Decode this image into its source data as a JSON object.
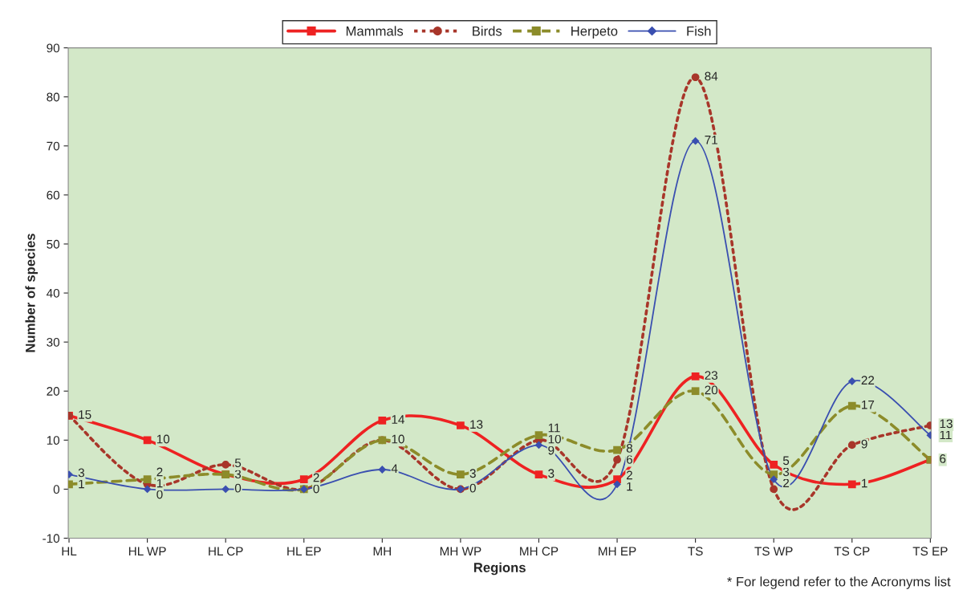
{
  "chart_data": {
    "type": "line",
    "xlabel": "Regions",
    "ylabel": "Number of species",
    "categories": [
      "HL",
      "HL WP",
      "HL CP",
      "HL EP",
      "MH",
      "MH WP",
      "MH CP",
      "MH EP",
      "TS",
      "TS WP",
      "TS CP",
      "TS EP"
    ],
    "series": [
      {
        "name": "Mammals",
        "color": "#ee2222",
        "marker": "square",
        "line_style": "solid",
        "values": [
          15,
          10,
          3,
          2,
          14,
          13,
          3,
          2,
          23,
          5,
          1,
          6
        ],
        "value_labels": [
          "15",
          "10",
          "3",
          "2",
          "14",
          "13",
          "3",
          "2",
          "23",
          "5",
          "1",
          "6"
        ]
      },
      {
        "name": "Birds",
        "color": "#a8362a",
        "marker": "circle",
        "line_style": "dotted",
        "values": [
          15,
          1,
          5,
          0,
          10,
          0,
          10,
          6,
          84,
          0,
          9,
          13
        ],
        "value_labels": [
          null,
          "1",
          "5",
          null,
          "10",
          null,
          "10",
          "6",
          "84",
          null,
          "9",
          "13"
        ]
      },
      {
        "name": "Herpeto",
        "color": "#8c8c2a",
        "marker": "square",
        "line_style": "dashed",
        "values": [
          1,
          2,
          3,
          0,
          10,
          3,
          11,
          8,
          20,
          3,
          17,
          6
        ],
        "value_labels": [
          "1",
          "2",
          null,
          null,
          null,
          "3",
          "11",
          "8",
          "20",
          "3",
          "17",
          null
        ]
      },
      {
        "name": "Fish",
        "color": "#3a4fb0",
        "marker": "diamond",
        "line_style": "solid",
        "values": [
          3,
          0,
          0,
          0,
          4,
          0,
          9,
          1,
          71,
          2,
          22,
          11
        ],
        "value_labels": [
          "3",
          "0",
          "0",
          "0",
          "4",
          "0",
          "9",
          "1",
          "71",
          "2",
          "22",
          "11"
        ]
      }
    ],
    "ylim": [
      -10,
      90
    ],
    "yticks": [
      -10,
      0,
      10,
      20,
      30,
      40,
      50,
      60,
      70,
      80,
      90
    ],
    "grid": false,
    "legend": "top",
    "annotations": [
      "* For legend refer to the Acronyms list"
    ]
  }
}
